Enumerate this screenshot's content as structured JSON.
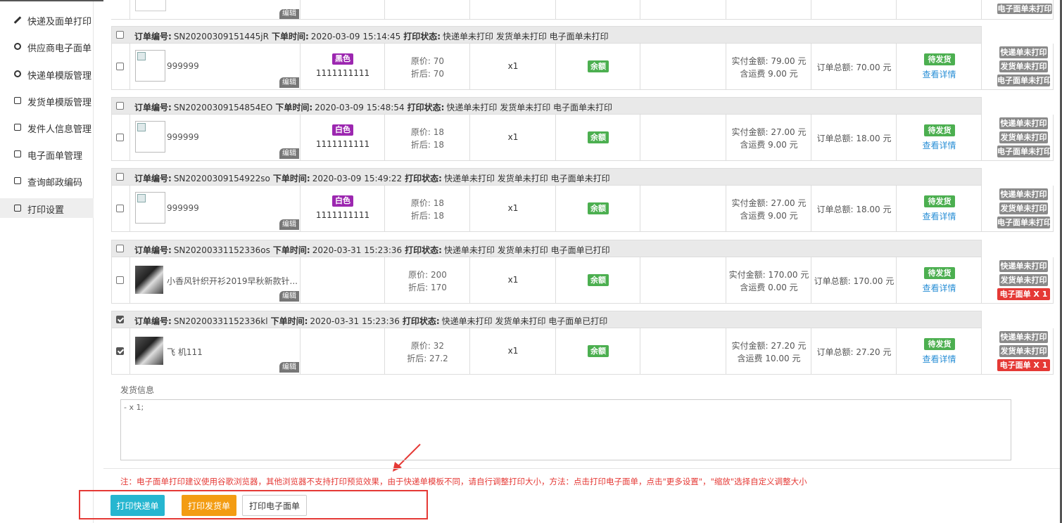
{
  "sidebar": {
    "items": [
      {
        "label": "快递及面单打印",
        "icon": "pen"
      },
      {
        "label": "供应商电子面单",
        "icon": "circle"
      },
      {
        "label": "快递单模版管理",
        "icon": "circle"
      },
      {
        "label": "发货单模版管理",
        "icon": "edit"
      },
      {
        "label": "发件人信息管理",
        "icon": "edit"
      },
      {
        "label": "电子面单管理",
        "icon": "edit"
      },
      {
        "label": "查询邮政编码",
        "icon": "edit"
      },
      {
        "label": "打印设置",
        "icon": "edit",
        "selected": true
      }
    ]
  },
  "top_row": {
    "edit": "编辑",
    "print": "电子面单未打印"
  },
  "orders": [
    {
      "checked": false,
      "order_no_label": "订单编号:",
      "order_no": "SN20200309151445jR",
      "time_label": "下单时间:",
      "time": "2020-03-09 15:14:45",
      "status_label": "打印状态:",
      "status": "快递单未打印 发货单未打印 电子面单未打印",
      "thumbnail": "placeholder",
      "product": "999999",
      "edit": "编辑",
      "color": "黑色",
      "sku": "1111111111",
      "orig": "原价: 70",
      "disc": "折后: 70",
      "qty": "x1",
      "pay_type": "余额",
      "paid": "实付金额: 79.00 元",
      "shipping": "含运费 9.00 元",
      "total": "订单总额: 70.00 元",
      "state": "待发货",
      "detail": "查看详情",
      "prints": [
        {
          "text": "快递单未打印",
          "color": "#8a8a8a"
        },
        {
          "text": "发货单未打印",
          "color": "#8a8a8a"
        },
        {
          "text": "电子面单未打印",
          "color": "#8a8a8a"
        }
      ]
    },
    {
      "checked": false,
      "order_no_label": "订单编号:",
      "order_no": "SN20200309154854EO",
      "time_label": "下单时间:",
      "time": "2020-03-09 15:48:54",
      "status_label": "打印状态:",
      "status": "快递单未打印 发货单未打印 电子面单未打印",
      "thumbnail": "placeholder",
      "product": "999999",
      "edit": "编辑",
      "color": "白色",
      "sku": "1111111111",
      "orig": "原价: 18",
      "disc": "折后: 18",
      "qty": "x1",
      "pay_type": "余额",
      "paid": "实付金额: 27.00 元",
      "shipping": "含运费 9.00 元",
      "total": "订单总额: 18.00 元",
      "state": "待发货",
      "detail": "查看详情",
      "prints": [
        {
          "text": "快递单未打印",
          "color": "#8a8a8a"
        },
        {
          "text": "发货单未打印",
          "color": "#8a8a8a"
        },
        {
          "text": "电子面单未打印",
          "color": "#8a8a8a"
        }
      ]
    },
    {
      "checked": false,
      "order_no_label": "订单编号:",
      "order_no": "SN20200309154922so",
      "time_label": "下单时间:",
      "time": "2020-03-09 15:49:22",
      "status_label": "打印状态:",
      "status": "快递单未打印 发货单未打印 电子面单未打印",
      "thumbnail": "placeholder",
      "product": "999999",
      "edit": "编辑",
      "color": "白色",
      "sku": "1111111111",
      "orig": "原价: 18",
      "disc": "折后: 18",
      "qty": "x1",
      "pay_type": "余额",
      "paid": "实付金额: 27.00 元",
      "shipping": "含运费 9.00 元",
      "total": "订单总额: 18.00 元",
      "state": "待发货",
      "detail": "查看详情",
      "prints": [
        {
          "text": "快递单未打印",
          "color": "#8a8a8a"
        },
        {
          "text": "发货单未打印",
          "color": "#8a8a8a"
        },
        {
          "text": "电子面单未打印",
          "color": "#8a8a8a"
        }
      ]
    },
    {
      "checked": false,
      "order_no_label": "订单编号:",
      "order_no": "SN20200331152336os",
      "time_label": "下单时间:",
      "time": "2020-03-31 15:23:36",
      "status_label": "打印状态:",
      "status": "快递单未打印 发货单未打印 电子面单已打印",
      "thumbnail": "photo",
      "product": "小香风针织开衫2019早秋新款针...",
      "edit": "编辑",
      "orig": "原价: 200",
      "disc": "折后: 170",
      "qty": "x1",
      "pay_type": "余额",
      "paid": "实付金额: 170.00 元",
      "shipping": "含运费 0.00 元",
      "total": "订单总额: 170.00 元",
      "state": "待发货",
      "detail": "查看详情",
      "prints": [
        {
          "text": "快递单未打印",
          "color": "#8a8a8a"
        },
        {
          "text": "发货单未打印",
          "color": "#8a8a8a"
        },
        {
          "text": "电子面单 X 1",
          "color": "#e53935"
        }
      ]
    },
    {
      "checked": true,
      "order_no_label": "订单编号:",
      "order_no": "SN20200331152336kl",
      "time_label": "下单时间:",
      "time": "2020-03-31 15:23:36",
      "status_label": "打印状态:",
      "status": "快递单未打印 发货单未打印 电子面单已打印",
      "thumbnail": "photo",
      "product": "飞 机111",
      "edit": "编辑",
      "orig": "原价: 32",
      "disc": "折后: 27.2",
      "qty": "x1",
      "pay_type": "余额",
      "paid": "实付金额: 27.20 元",
      "shipping": "含运费 10.00 元",
      "total": "订单总额: 27.20 元",
      "state": "待发货",
      "detail": "查看详情",
      "prints": [
        {
          "text": "快递单未打印",
          "color": "#8a8a8a"
        },
        {
          "text": "发货单未打印",
          "color": "#8a8a8a"
        },
        {
          "text": "电子面单 X 1",
          "color": "#e53935"
        }
      ]
    }
  ],
  "shipping_info": {
    "label": "发货信息",
    "content": "- x 1;"
  },
  "note": "注：电子面单打印建议使用谷歌浏览器，其他浏览器不支持打印预览效果，由于快递单模板不同，请自行调整打印大小，方法：点击打印电子面单，点击\"更多设置\"，\"缩放\"选择自定义调整大小",
  "buttons": [
    {
      "text": "打印快递单",
      "color": "#26b6d0"
    },
    {
      "text": "打印发货单",
      "color": "#f39c12"
    },
    {
      "text": "打印电子面单",
      "color": "#ffffff"
    }
  ]
}
